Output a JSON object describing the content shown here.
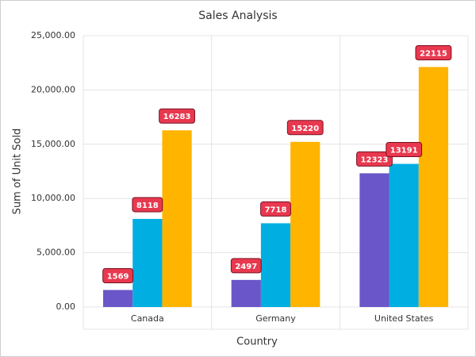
{
  "chart_data": {
    "type": "bar",
    "title": "Sales Analysis",
    "x_label": "Country",
    "y_label": "Sum of Unit Sold",
    "categories": [
      "Canada",
      "Germany",
      "United States"
    ],
    "series": [
      {
        "color": "#6a56c8",
        "values": [
          1569,
          2497,
          12323
        ]
      },
      {
        "color": "#00aee1",
        "values": [
          8118,
          7718,
          13191
        ]
      },
      {
        "color": "#ffb400",
        "values": [
          16283,
          15220,
          22115
        ]
      }
    ],
    "ylim": [
      0,
      25000
    ],
    "yticks": [
      {
        "value": 0,
        "label": "0.00"
      },
      {
        "value": 5000,
        "label": "5,000.00"
      },
      {
        "value": 10000,
        "label": "10,000.00"
      },
      {
        "value": 15000,
        "label": "15,000.00"
      },
      {
        "value": 20000,
        "label": "20,000.00"
      },
      {
        "value": 25000,
        "label": "25,000.00"
      }
    ],
    "grid": true
  }
}
